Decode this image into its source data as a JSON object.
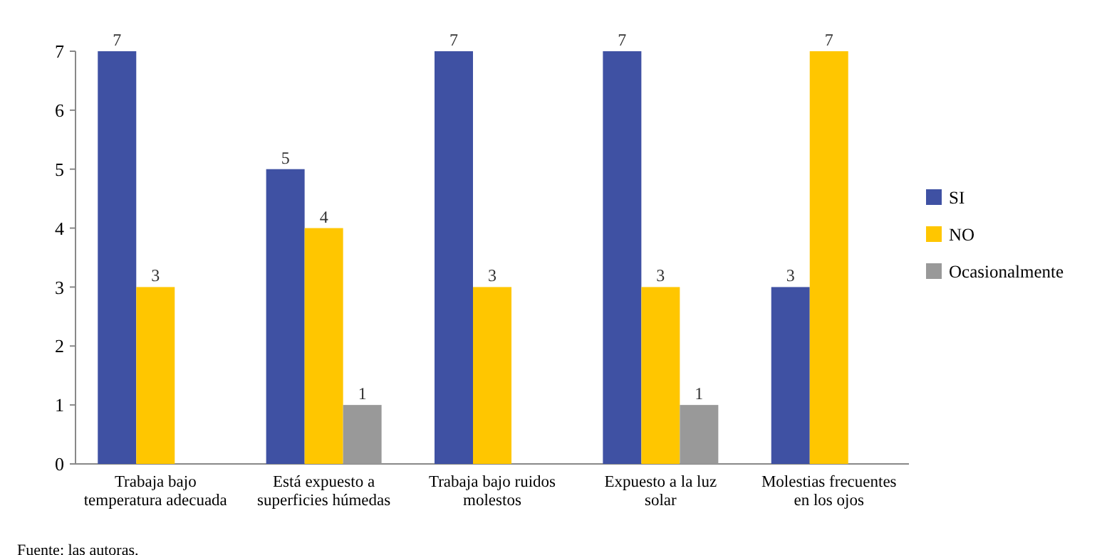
{
  "chart_data": {
    "type": "bar",
    "categories": [
      "Trabaja bajo temperatura adecuada",
      "Está expuesto a superficies húmedas",
      "Trabaja bajo ruidos molestos",
      "Expuesto a la luz solar",
      "Molestias frecuentes en los ojos"
    ],
    "series": [
      {
        "name": "SI",
        "color": "#3f51a3",
        "values": [
          7,
          5,
          7,
          7,
          3
        ]
      },
      {
        "name": "NO",
        "color": "#ffc600",
        "values": [
          3,
          4,
          3,
          3,
          7
        ]
      },
      {
        "name": "Ocasionalmente",
        "color": "#999999",
        "values": [
          null,
          1,
          null,
          1,
          null
        ]
      }
    ],
    "ylim": [
      0,
      7
    ],
    "yticks": [
      0,
      1,
      2,
      3,
      4,
      5,
      6,
      7
    ],
    "data_labels": true,
    "legend": "right",
    "grid": false,
    "annotations": [
      "Fuente: las autoras."
    ]
  }
}
